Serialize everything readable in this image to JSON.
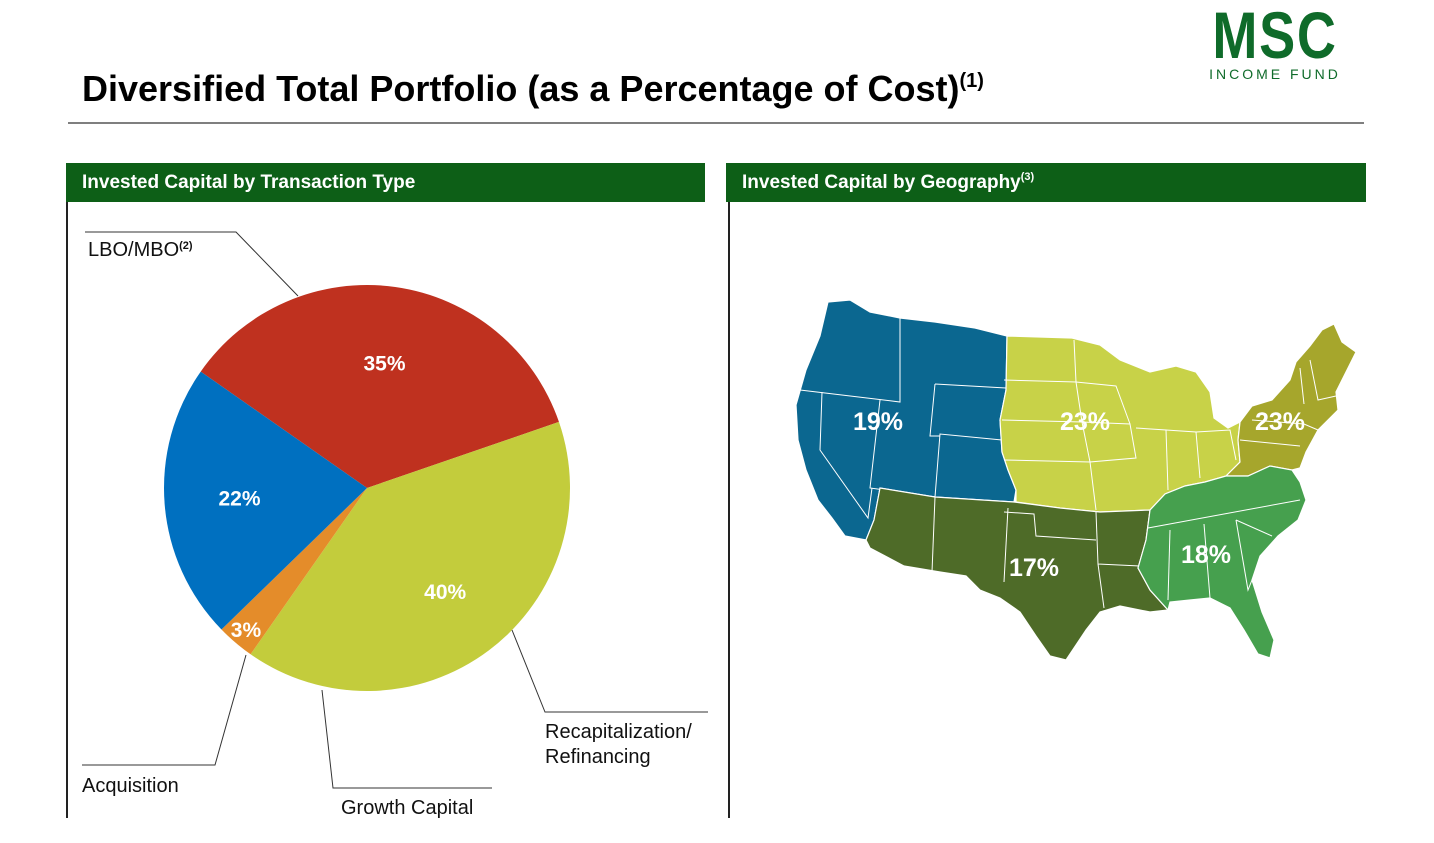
{
  "logo": {
    "main": "MSC",
    "sub": "INCOME FUND"
  },
  "page": {
    "title": "Diversified Total Portfolio (as a Percentage of Cost)",
    "title_note": "(1)"
  },
  "left_panel": {
    "title": "Invested Capital by Transaction Type"
  },
  "right_panel": {
    "title": "Invested Capital by Geography",
    "title_note": "(3)"
  },
  "colors": {
    "brand_green": "#0d5f17",
    "lbo": "#bf311f",
    "recap": "#c3cc3c",
    "growth": "#e48c2a",
    "acquisition": "#0070c0",
    "west": "#0b6790",
    "midwest": "#c8d248",
    "northeast": "#a6a62c",
    "southwest": "#4e6b28",
    "southeast": "#46a04e"
  },
  "chart_data": [
    {
      "type": "pie",
      "title": "Invested Capital by Transaction Type",
      "slices": [
        {
          "label": "LBO/MBO",
          "note": "(2)",
          "value": 35,
          "display": "35%"
        },
        {
          "label": "Recapitalization/ Refinancing",
          "label_lines": [
            "Recapitalization/",
            "Refinancing"
          ],
          "value": 40,
          "display": "40%"
        },
        {
          "label": "Growth Capital",
          "value": 3,
          "display": "3%"
        },
        {
          "label": "Acquisition",
          "value": 22,
          "display": "22%"
        }
      ]
    },
    {
      "type": "map",
      "title": "Invested Capital by Geography",
      "regions": [
        {
          "region": "west",
          "value": 19,
          "display": "19%"
        },
        {
          "region": "midwest",
          "value": 23,
          "display": "23%"
        },
        {
          "region": "northeast",
          "value": 23,
          "display": "23%"
        },
        {
          "region": "southwest",
          "value": 17,
          "display": "17%"
        },
        {
          "region": "southeast",
          "value": 18,
          "display": "18%"
        }
      ]
    }
  ]
}
